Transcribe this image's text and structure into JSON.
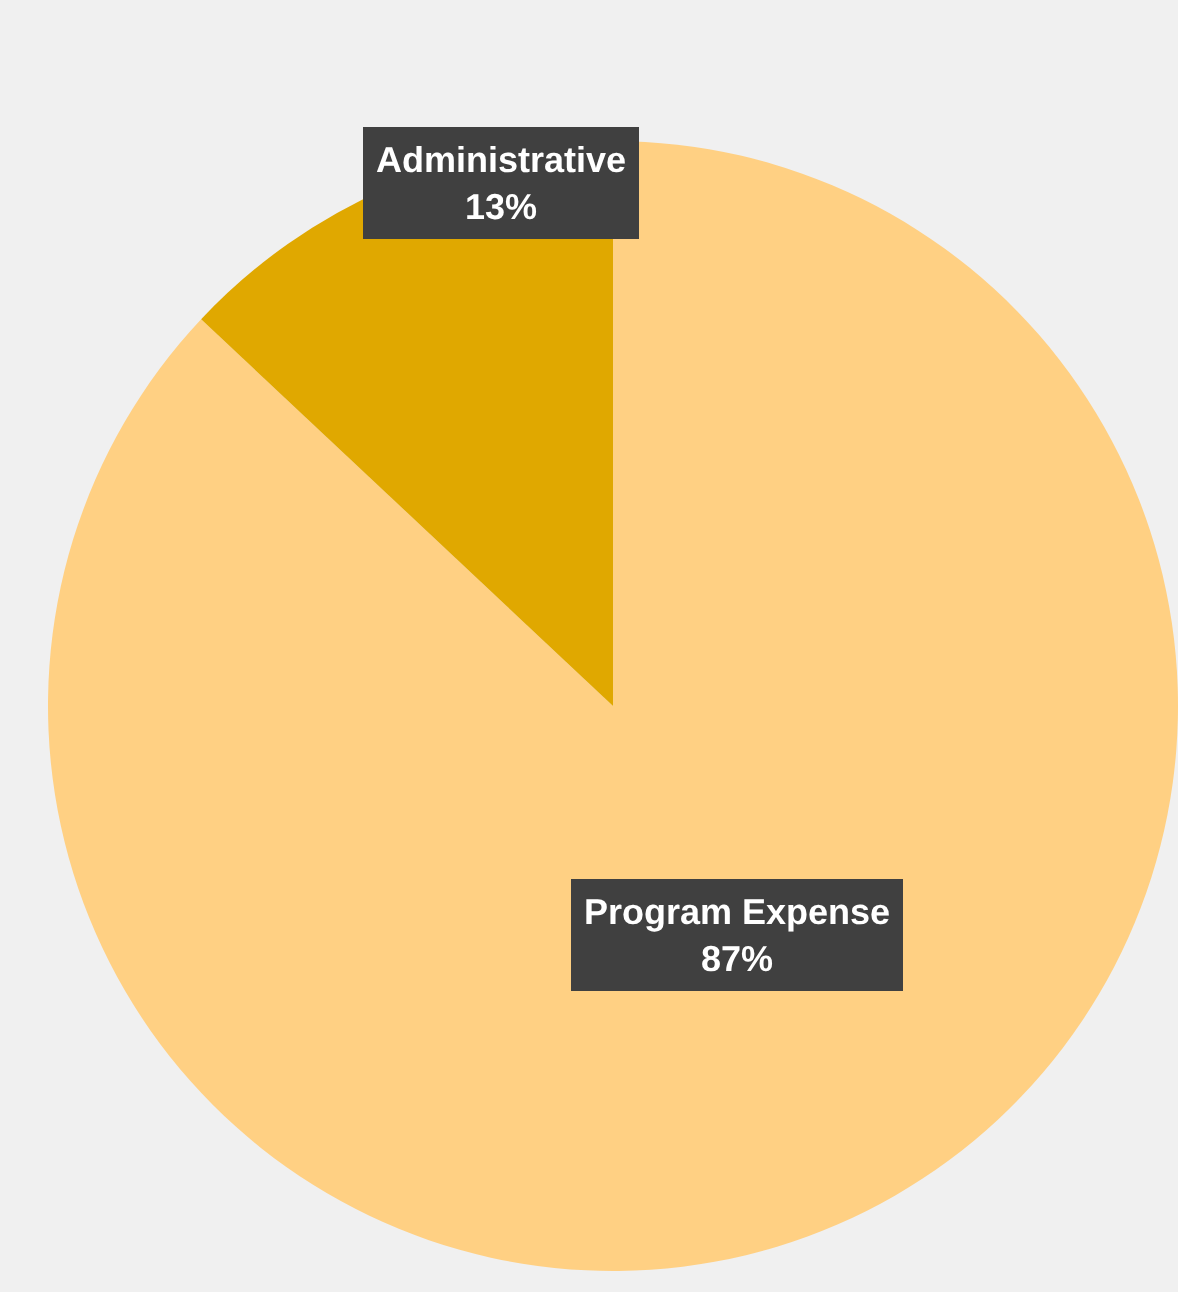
{
  "chart_data": {
    "type": "pie",
    "categories": [
      "Program Expense",
      "Administrative"
    ],
    "values": [
      87,
      13
    ],
    "colors": [
      "#ffd083",
      "#e0a800"
    ],
    "value_labels": [
      "87%",
      "13%"
    ],
    "legend": false
  }
}
